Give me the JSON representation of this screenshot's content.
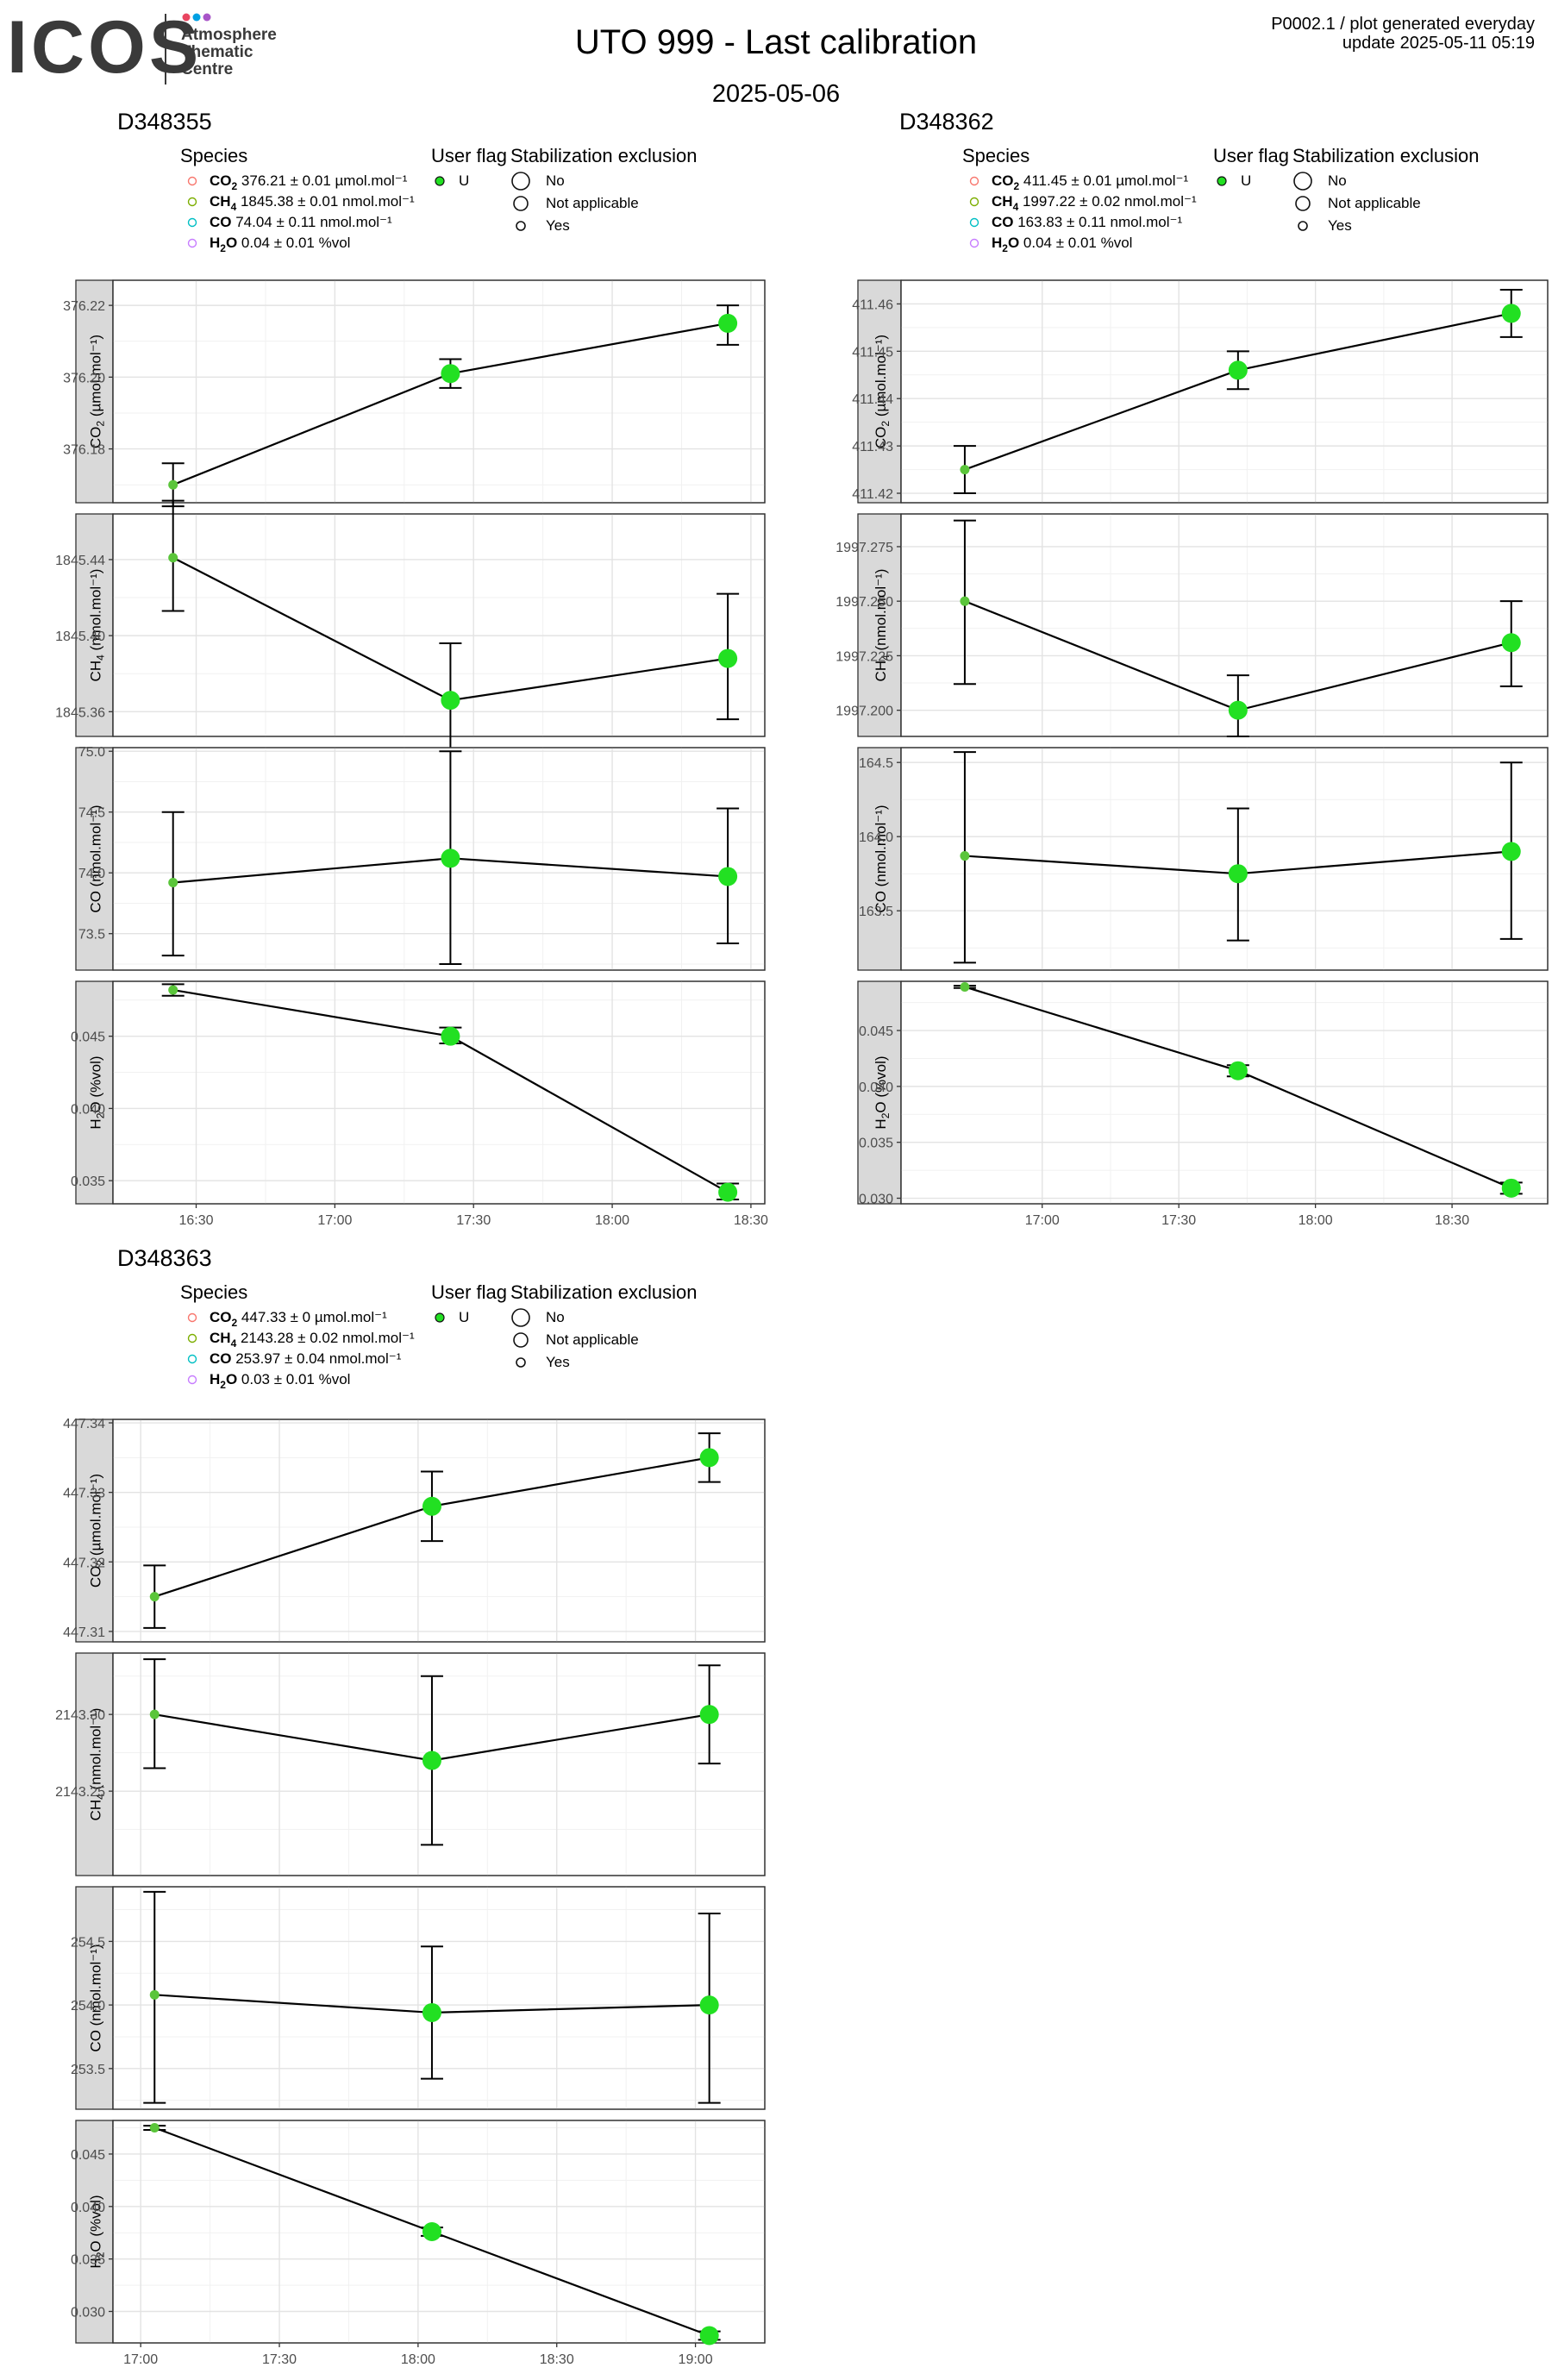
{
  "header": {
    "logo_text": "ICOS",
    "logo_sub": [
      "Atmosphere",
      "Thematic",
      "Centre"
    ],
    "logo_dot_colors": [
      "#e94560",
      "#00a0e3",
      "#a855c8"
    ],
    "title": "UTO 999 - Last calibration",
    "date": "2025-05-06",
    "meta_line1": "P0002.1 / plot generated everyday",
    "meta_line2": "update  2025-05-11 05:19"
  },
  "legend_labels": {
    "species_title": "Species",
    "flag_title": "User flag",
    "stab_title": "Stabilization exclusion",
    "flag_values": [
      "U"
    ],
    "stab_values": [
      "No",
      "Not applicable",
      "Yes"
    ]
  },
  "colors": {
    "point": "#22e022",
    "point_small": "#5ac53a",
    "species_legend": [
      "#f8766d",
      "#7cae00",
      "#00bfc4",
      "#c77cff"
    ]
  },
  "chart_data": [
    {
      "type": "line",
      "title": "D348355",
      "x_ticks": [
        "16:30",
        "17:00",
        "17:30",
        "18:00",
        "18:30"
      ],
      "x_tick_minutes": [
        990,
        1020,
        1050,
        1080,
        1110
      ],
      "x_range_minutes": [
        972,
        1113
      ],
      "x_minutes": [
        985,
        1045,
        1105
      ],
      "stabilization": [
        "Yes",
        "No",
        "No"
      ],
      "species_legend": [
        {
          "sym": "CO",
          "sub": "2",
          "text": " 376.21 ± 0.01 µmol.mol⁻¹"
        },
        {
          "sym": "CH",
          "sub": "4",
          "text": " 1845.38 ± 0.01 nmol.mol⁻¹"
        },
        {
          "sym": "CO",
          "sub": "",
          "text": " 74.04 ± 0.11 nmol.mol⁻¹"
        },
        {
          "sym": "H",
          "sub": "2",
          "sym2": "O",
          "text": " 0.04 ± 0.01 %vol"
        }
      ],
      "series": [
        {
          "name": "CO2",
          "ylabel_main": "CO",
          "ylabel_sub": "2",
          "ylabel_unit": " (µmol.mol⁻¹)",
          "ylim": [
            376.165,
            376.227
          ],
          "ticks": [
            376.18,
            376.2,
            376.22
          ],
          "tick_labels": [
            "376.18",
            "376.20",
            "376.22"
          ],
          "minor_ticks": [
            376.17,
            376.19,
            376.21
          ],
          "values": [
            376.17,
            376.201,
            376.215
          ],
          "err_lo": [
            376.164,
            376.197,
            376.209
          ],
          "err_hi": [
            376.176,
            376.205,
            376.22
          ]
        },
        {
          "name": "CH4",
          "ylabel_main": "CH",
          "ylabel_sub": "4",
          "ylabel_unit": " (nmol.mol⁻¹)",
          "ylim": [
            1845.347,
            1845.464
          ],
          "ticks": [
            1845.36,
            1845.4,
            1845.44
          ],
          "tick_labels": [
            "1845.36",
            "1845.40",
            "1845.44"
          ],
          "minor_ticks": [
            1845.38,
            1845.42
          ],
          "values": [
            1845.441,
            1845.366,
            1845.388
          ],
          "err_lo": [
            1845.413,
            1845.336,
            1845.356
          ],
          "err_hi": [
            1845.471,
            1845.396,
            1845.422
          ]
        },
        {
          "name": "CO",
          "ylabel_main": "CO",
          "ylabel_sub": "",
          "ylabel_unit": " (nmol.mol⁻¹)",
          "ylim": [
            73.2,
            75.03
          ],
          "ticks": [
            73.5,
            74.0,
            74.5,
            75.0
          ],
          "tick_labels": [
            "73.5",
            "74.0",
            "74.5",
            "75.0"
          ],
          "minor_ticks": [
            73.25,
            73.75,
            74.25,
            74.75
          ],
          "values": [
            73.92,
            74.12,
            73.97
          ],
          "err_lo": [
            73.32,
            73.25,
            73.42
          ],
          "err_hi": [
            74.5,
            75.0,
            74.53
          ]
        },
        {
          "name": "H2O",
          "ylabel_main": "H",
          "ylabel_sub": "2",
          "ylabel_after": "O",
          "ylabel_unit": " (%vol)",
          "ylim": [
            0.0334,
            0.0488
          ],
          "ticks": [
            0.035,
            0.04,
            0.045
          ],
          "tick_labels": [
            "0.035",
            "0.040",
            "0.045"
          ],
          "minor_ticks": [
            0.0375,
            0.0425,
            0.0475
          ],
          "values": [
            0.0482,
            0.045,
            0.0342
          ],
          "err_lo": [
            0.0478,
            0.0445,
            0.0337
          ],
          "err_hi": [
            0.0486,
            0.0456,
            0.0348
          ]
        }
      ]
    },
    {
      "type": "line",
      "title": "D348362",
      "x_ticks": [
        "17:00",
        "17:30",
        "18:00",
        "18:30"
      ],
      "x_tick_minutes": [
        1020,
        1050,
        1080,
        1110
      ],
      "x_range_minutes": [
        989,
        1131
      ],
      "x_minutes": [
        1003,
        1063,
        1123
      ],
      "stabilization": [
        "Yes",
        "No",
        "No"
      ],
      "species_legend": [
        {
          "sym": "CO",
          "sub": "2",
          "text": " 411.45 ± 0.01 µmol.mol⁻¹"
        },
        {
          "sym": "CH",
          "sub": "4",
          "text": " 1997.22 ± 0.02 nmol.mol⁻¹"
        },
        {
          "sym": "CO",
          "sub": "",
          "text": " 163.83 ± 0.11 nmol.mol⁻¹"
        },
        {
          "sym": "H",
          "sub": "2",
          "sym2": "O",
          "text": " 0.04 ± 0.01 %vol"
        }
      ],
      "series": [
        {
          "name": "CO2",
          "ylabel_main": "CO",
          "ylabel_sub": "2",
          "ylabel_unit": " (µmol.mol⁻¹)",
          "ylim": [
            411.418,
            411.465
          ],
          "ticks": [
            411.42,
            411.43,
            411.44,
            411.45,
            411.46
          ],
          "tick_labels": [
            "411.42",
            "411.43",
            "411.44",
            "411.45",
            "411.46"
          ],
          "minor_ticks": [
            411.425,
            411.435,
            411.445,
            411.455
          ],
          "values": [
            411.425,
            411.446,
            411.458
          ],
          "err_lo": [
            411.42,
            411.442,
            411.453
          ],
          "err_hi": [
            411.43,
            411.45,
            411.463
          ]
        },
        {
          "name": "CH4",
          "ylabel_main": "CH",
          "ylabel_sub": "4",
          "ylabel_unit": " (nmol.mol⁻¹)",
          "ylim": [
            1997.188,
            1997.29
          ],
          "ticks": [
            1997.2,
            1997.225,
            1997.25,
            1997.275
          ],
          "tick_labels": [
            "1997.200",
            "1997.225",
            "1997.250",
            "1997.275"
          ],
          "minor_ticks": [
            1997.2125,
            1997.2375,
            1997.2625
          ],
          "values": [
            1997.25,
            1997.2,
            1997.231
          ],
          "err_lo": [
            1997.212,
            1997.188,
            1997.211
          ],
          "err_hi": [
            1997.287,
            1997.216,
            1997.25
          ]
        },
        {
          "name": "CO",
          "ylabel_main": "CO",
          "ylabel_sub": "",
          "ylabel_unit": " (nmol.mol⁻¹)",
          "ylim": [
            163.1,
            164.6
          ],
          "ticks": [
            163.5,
            164.0,
            164.5
          ],
          "tick_labels": [
            "163.5",
            "164.0",
            "164.5"
          ],
          "minor_ticks": [
            163.25,
            163.75,
            164.25
          ],
          "values": [
            163.87,
            163.75,
            163.9
          ],
          "err_lo": [
            163.15,
            163.3,
            163.31
          ],
          "err_hi": [
            164.57,
            164.19,
            164.5
          ]
        },
        {
          "name": "H2O",
          "ylabel_main": "H",
          "ylabel_sub": "2",
          "ylabel_after": "O",
          "ylabel_unit": " (%vol)",
          "ylim": [
            0.0295,
            0.0494
          ],
          "ticks": [
            0.03,
            0.035,
            0.04,
            0.045
          ],
          "tick_labels": [
            "0.030",
            "0.035",
            "0.040",
            "0.045"
          ],
          "minor_ticks": [
            0.0325,
            0.0375,
            0.0425,
            0.0475
          ],
          "values": [
            0.0489,
            0.0414,
            0.0309
          ],
          "err_lo": [
            0.0488,
            0.0409,
            0.0304
          ],
          "err_hi": [
            0.049,
            0.0419,
            0.0314
          ]
        }
      ]
    },
    {
      "type": "line",
      "title": "D348363",
      "x_ticks": [
        "17:00",
        "17:30",
        "18:00",
        "18:30",
        "19:00"
      ],
      "x_tick_minutes": [
        1020,
        1050,
        1080,
        1110,
        1140
      ],
      "x_range_minutes": [
        1014,
        1155
      ],
      "x_minutes": [
        1023,
        1083,
        1143
      ],
      "stabilization": [
        "Yes",
        "No",
        "No"
      ],
      "species_legend": [
        {
          "sym": "CO",
          "sub": "2",
          "text": " 447.33 ± 0 µmol.mol⁻¹"
        },
        {
          "sym": "CH",
          "sub": "4",
          "text": " 2143.28 ± 0.02 nmol.mol⁻¹"
        },
        {
          "sym": "CO",
          "sub": "",
          "text": " 253.97 ± 0.04 nmol.mol⁻¹"
        },
        {
          "sym": "H",
          "sub": "2",
          "sym2": "O",
          "text": " 0.03 ± 0.01 %vol"
        }
      ],
      "series": [
        {
          "name": "CO2",
          "ylabel_main": "CO",
          "ylabel_sub": "2",
          "ylabel_unit": " (µmol.mol⁻¹)",
          "ylim": [
            447.3085,
            447.3405
          ],
          "ticks": [
            447.31,
            447.32,
            447.33,
            447.34
          ],
          "tick_labels": [
            "447.31",
            "447.32",
            "447.33",
            "447.34"
          ],
          "minor_ticks": [
            447.315,
            447.325,
            447.335
          ],
          "values": [
            447.315,
            447.328,
            447.335
          ],
          "err_lo": [
            447.3105,
            447.323,
            447.3315
          ],
          "err_hi": [
            447.3195,
            447.333,
            447.3385
          ]
        },
        {
          "name": "CH4",
          "ylabel_main": "CH",
          "ylabel_sub": "4",
          "ylabel_unit": " (nmol.mol⁻¹)",
          "ylim": [
            2143.195,
            2143.34
          ],
          "ticks": [
            2143.25,
            2143.3
          ],
          "tick_labels": [
            "2143.25",
            "2143.30"
          ],
          "minor_ticks": [
            2143.225,
            2143.275,
            2143.325
          ],
          "values": [
            2143.3,
            2143.27,
            2143.3
          ],
          "err_lo": [
            2143.265,
            2143.215,
            2143.268
          ],
          "err_hi": [
            2143.336,
            2143.325,
            2143.332
          ]
        },
        {
          "name": "CO",
          "ylabel_main": "CO",
          "ylabel_sub": "",
          "ylabel_unit": " (nmol.mol⁻¹)",
          "ylim": [
            253.18,
            254.93
          ],
          "ticks": [
            253.5,
            254.0,
            254.5
          ],
          "tick_labels": [
            "253.5",
            "254.0",
            "254.5"
          ],
          "minor_ticks": [
            253.25,
            253.75,
            254.25,
            254.75
          ],
          "values": [
            254.08,
            253.94,
            254.0
          ],
          "err_lo": [
            253.23,
            253.42,
            253.23
          ],
          "err_hi": [
            254.89,
            254.46,
            254.72
          ]
        },
        {
          "name": "H2O",
          "ylabel_main": "H",
          "ylabel_sub": "2",
          "ylabel_after": "O",
          "ylabel_unit": " (%vol)",
          "ylim": [
            0.027,
            0.0482
          ],
          "ticks": [
            0.03,
            0.035,
            0.04,
            0.045
          ],
          "tick_labels": [
            "0.030",
            "0.035",
            "0.040",
            "0.045"
          ],
          "minor_ticks": [
            0.0325,
            0.0375,
            0.0425,
            0.0475
          ],
          "values": [
            0.0475,
            0.0376,
            0.0277
          ],
          "err_lo": [
            0.0473,
            0.0372,
            0.0273
          ],
          "err_hi": [
            0.0477,
            0.038,
            0.0281
          ]
        }
      ]
    }
  ]
}
